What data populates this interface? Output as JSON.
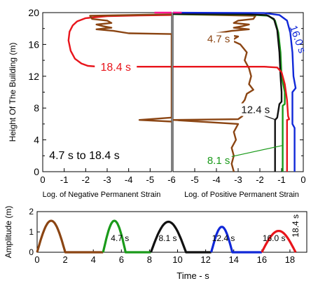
{
  "chart_data": [
    {
      "type": "line",
      "ylabel": "Height Of The Building (m)",
      "annotation": "4.7 s  to 18.4 s",
      "yticks": [
        "0",
        "4",
        "8",
        "12",
        "16",
        "20"
      ],
      "ylim": [
        0,
        20
      ],
      "panels": [
        {
          "name": "negative",
          "xlabel": "Log. of Negative Permanent Strain",
          "xlim": [
            0,
            -6
          ],
          "xticks": [
            "0",
            "-1",
            "-2",
            "-3",
            "-4",
            "-5",
            "-6"
          ],
          "series": [
            {
              "name": "18.4 s",
              "color": "#e8141b",
              "points": [
                [
                  -6,
                  13.2
                ],
                [
                  -3.4,
                  13.2
                ],
                [
                  -2.6,
                  13.2
                ],
                [
                  -2.1,
                  13.3
                ],
                [
                  -1.8,
                  13.6
                ],
                [
                  -1.5,
                  14.2
                ],
                [
                  -1.3,
                  15.2
                ],
                [
                  -1.2,
                  16.5
                ],
                [
                  -1.25,
                  17.6
                ],
                [
                  -1.4,
                  18.4
                ],
                [
                  -1.6,
                  18.9
                ],
                [
                  -2.0,
                  19.3
                ],
                [
                  -3.0,
                  19.55
                ],
                [
                  -4.5,
                  19.65
                ],
                [
                  -6,
                  19.7
                ]
              ]
            },
            {
              "name": "4.7 s",
              "color": "#8b4513",
              "points": [
                [
                  -6,
                  19.8
                ],
                [
                  -4,
                  19.7
                ],
                [
                  -2.2,
                  19.6
                ],
                [
                  -2.3,
                  19.2
                ],
                [
                  -3.0,
                  19.0
                ],
                [
                  -3.2,
                  18.7
                ],
                [
                  -2.5,
                  18.5
                ],
                [
                  -2.8,
                  18.3
                ],
                [
                  -3.2,
                  18.1
                ],
                [
                  -2.5,
                  17.9
                ],
                [
                  -3.3,
                  17.7
                ],
                [
                  -4.0,
                  17.4
                ],
                [
                  -6,
                  17.3
                ],
                [
                  -6,
                  6.8
                ],
                [
                  -4.5,
                  6.5
                ],
                [
                  -6,
                  6.3
                ]
              ]
            },
            {
              "name": "top",
              "color": "#ff1493",
              "points": [
                [
                  -5.2,
                  20
                ],
                [
                  -6,
                  20
                ]
              ]
            }
          ]
        },
        {
          "name": "positive",
          "xlabel": "Log. of Positive Permanent Strain",
          "xlim": [
            -6,
            0
          ],
          "xticks": [
            "-5",
            "-4",
            "-3",
            "-2",
            "-1",
            "0"
          ],
          "series": [
            {
              "name": "4.7 s",
              "color": "#8b4513",
              "points": [
                [
                  -6,
                  19.8
                ],
                [
                  -4,
                  19.7
                ],
                [
                  -2.2,
                  19.6
                ],
                [
                  -2.3,
                  19.2
                ],
                [
                  -3.0,
                  19.0
                ],
                [
                  -3.2,
                  18.7
                ],
                [
                  -2.5,
                  18.5
                ],
                [
                  -2.8,
                  18.3
                ],
                [
                  -3.2,
                  18.1
                ],
                [
                  -2.5,
                  17.9
                ],
                [
                  -3.3,
                  17.7
                ],
                [
                  -4.0,
                  17.4
                ],
                [
                  -3.5,
                  17.2
                ],
                [
                  -3.0,
                  17.0
                ],
                [
                  -3.3,
                  16.5
                ],
                [
                  -2.9,
                  16.0
                ],
                [
                  -2.6,
                  15.0
                ],
                [
                  -2.7,
                  14.0
                ],
                [
                  -2.5,
                  13.0
                ],
                [
                  -2.4,
                  12.0
                ],
                [
                  -2.5,
                  11.0
                ],
                [
                  -2.3,
                  10.3
                ],
                [
                  -2.6,
                  9.8
                ],
                [
                  -2.7,
                  9.0
                ],
                [
                  -2.9,
                  8.3
                ],
                [
                  -3.0,
                  7.5
                ],
                [
                  -2.8,
                  7.0
                ],
                [
                  -3.0,
                  6.6
                ],
                [
                  -6,
                  6.5
                ],
                [
                  -3.0,
                  6.0
                ],
                [
                  -3.2,
                  5.0
                ],
                [
                  -3.1,
                  4.0
                ],
                [
                  -3.3,
                  3.0
                ],
                [
                  -3.2,
                  2.0
                ],
                [
                  -3.3,
                  1.0
                ],
                [
                  -3.2,
                  0
                ]
              ]
            },
            {
              "name": "8.1 s",
              "color": "#1a9a1a",
              "points": [
                [
                  -6,
                  19.8
                ],
                [
                  -2.5,
                  19.75
                ],
                [
                  -1.6,
                  19.6
                ],
                [
                  -1.3,
                  19.0
                ],
                [
                  -1.15,
                  17.5
                ],
                [
                  -1.05,
                  15.0
                ],
                [
                  -1.0,
                  12.0
                ],
                [
                  -0.85,
                  10.0
                ],
                [
                  -0.85,
                  8.5
                ],
                [
                  -0.95,
                  8.3
                ],
                [
                  -0.95,
                  0
                ]
              ]
            },
            {
              "name": "12.4 s",
              "color": "#111111",
              "points": [
                [
                  -6,
                  19.85
                ],
                [
                  -2.8,
                  19.8
                ],
                [
                  -1.7,
                  19.7
                ],
                [
                  -1.35,
                  19.2
                ],
                [
                  -1.2,
                  17.8
                ],
                [
                  -1.1,
                  15.0
                ],
                [
                  -1.05,
                  12.0
                ],
                [
                  -1.0,
                  10.0
                ],
                [
                  -1.0,
                  8.8
                ],
                [
                  -1.1,
                  8.5
                ],
                [
                  -1.2,
                  6.8
                ],
                [
                  -1.3,
                  6.5
                ],
                [
                  -1.3,
                  0
                ]
              ]
            },
            {
              "name": "18.4 s",
              "color": "#e8141b",
              "points": [
                [
                  -6,
                  13.2
                ],
                [
                  -1.8,
                  13.2
                ],
                [
                  -1.2,
                  13.1
                ],
                [
                  -1.0,
                  12.5
                ],
                [
                  -0.85,
                  11.0
                ],
                [
                  -0.75,
                  9.0
                ],
                [
                  -0.7,
                  7.0
                ],
                [
                  -0.65,
                  6.6
                ],
                [
                  -0.75,
                  6.5
                ],
                [
                  -0.75,
                  0
                ]
              ]
            },
            {
              "name": "16.0 s",
              "color": "#1028d8",
              "points": [
                [
                  -6,
                  20
                ],
                [
                  -1.8,
                  19.95
                ],
                [
                  -1.1,
                  19.7
                ],
                [
                  -0.75,
                  19.0
                ],
                [
                  -0.6,
                  17.5
                ],
                [
                  -0.5,
                  15.0
                ],
                [
                  -0.45,
                  12.0
                ],
                [
                  -0.35,
                  10.5
                ],
                [
                  -0.5,
                  10.0
                ],
                [
                  -0.5,
                  6.0
                ],
                [
                  -0.4,
                  5.5
                ],
                [
                  -0.4,
                  0
                ]
              ]
            },
            {
              "name": "top",
              "color": "#ff1493",
              "points": [
                [
                  -6,
                  20
                ],
                [
                  -5.6,
                  20
                ]
              ]
            }
          ],
          "labels": [
            {
              "text": "4.7 s",
              "color": "#8b4513",
              "x": -3.9,
              "y": 16.7
            },
            {
              "text": "12.4 s",
              "color": "#111111",
              "x": -2.2,
              "y": 7.8
            },
            {
              "text": "8.1 s",
              "color": "#1a9a1a",
              "x": -3.9,
              "y": 1.4
            }
          ]
        }
      ],
      "labels": [
        {
          "text": "18.4 s",
          "color": "#e8141b",
          "panel": "negative",
          "x": -3.4,
          "y": 13.2
        },
        {
          "text": "16.0 s",
          "color": "#1028d8",
          "panel": "positive",
          "x": -0.4,
          "y": 16.5
        }
      ]
    },
    {
      "type": "line",
      "xlabel": "Time - s",
      "ylabel": "Amplitude (m)",
      "xlim": [
        0,
        19.2
      ],
      "ylim": [
        0,
        2
      ],
      "xticks": [
        "0",
        "2",
        "4",
        "6",
        "8",
        "10",
        "12",
        "14",
        "16",
        "18"
      ],
      "yticks": [
        "0",
        "1",
        "2"
      ],
      "pulses": [
        {
          "start": 0,
          "end": 2.0,
          "peak": 1.55,
          "tail_end": 4.7,
          "color": "#8b4513"
        },
        {
          "start": 4.7,
          "end": 6.3,
          "peak": 1.55,
          "tail_end": 8.1,
          "color": "#1a9a1a"
        },
        {
          "start": 8.1,
          "end": 10.6,
          "peak": 1.5,
          "tail_end": 12.4,
          "color": "#111111"
        },
        {
          "start": 12.4,
          "end": 13.9,
          "peak": 1.25,
          "tail_end": 16.0,
          "color": "#1028d8"
        },
        {
          "start": 16.0,
          "end": 18.4,
          "peak": 1.05,
          "tail_end": 18.4,
          "color": "#e8141b"
        }
      ],
      "labels": [
        {
          "text": "4.7 s",
          "x": 5.25,
          "y": 0.55
        },
        {
          "text": "8.1 s",
          "x": 8.65,
          "y": 0.55
        },
        {
          "text": "12.4 s",
          "x": 12.45,
          "y": 0.55
        },
        {
          "text": "16.0 s",
          "x": 16.05,
          "y": 0.55
        },
        {
          "text": "18.4 s",
          "x": 18.6,
          "y": 1.3,
          "rotate": true
        }
      ]
    }
  ]
}
